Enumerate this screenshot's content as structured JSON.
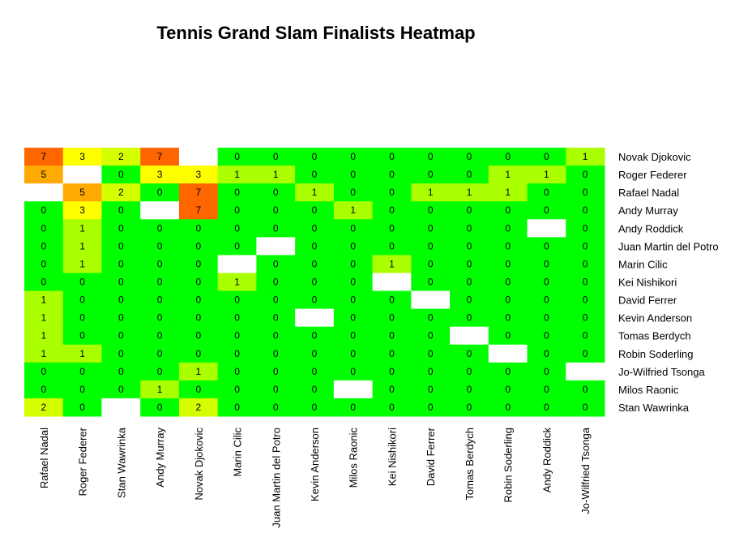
{
  "chart_data": {
    "type": "heatmap",
    "title": "Tennis Grand Slam Finalists Heatmap",
    "xlabel": "",
    "ylabel": "",
    "x_categories": [
      "Rafael Nadal",
      "Roger Federer",
      "Stan Wawrinka",
      "Andy Murray",
      "Novak Djokovic",
      "Marin Cilic",
      "Juan Martin del Potro",
      "Kevin Anderson",
      "Milos Raonic",
      "Kei Nishikori",
      "David Ferrer",
      "Tomas Berdych",
      "Robin Soderling",
      "Andy Roddick",
      "Jo-Wilfried Tsonga"
    ],
    "y_categories": [
      "Novak Djokovic",
      "Roger Federer",
      "Rafael Nadal",
      "Andy Murray",
      "Andy Roddick",
      "Juan Martin del Potro",
      "Marin Cilic",
      "Kei Nishikori",
      "David Ferrer",
      "Kevin Anderson",
      "Tomas Berdych",
      "Robin Soderling",
      "Jo-Wilfried Tsonga",
      "Milos Raonic",
      "Stan Wawrinka"
    ],
    "values": [
      [
        7,
        3,
        2,
        7,
        null,
        0,
        0,
        0,
        0,
        0,
        0,
        0,
        0,
        0,
        1
      ],
      [
        5,
        null,
        0,
        3,
        3,
        1,
        1,
        0,
        0,
        0,
        0,
        0,
        1,
        1,
        0
      ],
      [
        null,
        5,
        2,
        0,
        7,
        0,
        0,
        1,
        0,
        0,
        1,
        1,
        1,
        0,
        0
      ],
      [
        0,
        3,
        0,
        null,
        7,
        0,
        0,
        0,
        1,
        0,
        0,
        0,
        0,
        0,
        0
      ],
      [
        0,
        1,
        0,
        0,
        0,
        0,
        0,
        0,
        0,
        0,
        0,
        0,
        0,
        null,
        0
      ],
      [
        0,
        1,
        0,
        0,
        0,
        0,
        null,
        0,
        0,
        0,
        0,
        0,
        0,
        0,
        0
      ],
      [
        0,
        1,
        0,
        0,
        0,
        null,
        0,
        0,
        0,
        1,
        0,
        0,
        0,
        0,
        0
      ],
      [
        0,
        0,
        0,
        0,
        0,
        1,
        0,
        0,
        0,
        null,
        0,
        0,
        0,
        0,
        0
      ],
      [
        1,
        0,
        0,
        0,
        0,
        0,
        0,
        0,
        0,
        0,
        null,
        0,
        0,
        0,
        0
      ],
      [
        1,
        0,
        0,
        0,
        0,
        0,
        0,
        null,
        0,
        0,
        0,
        0,
        0,
        0,
        0
      ],
      [
        1,
        0,
        0,
        0,
        0,
        0,
        0,
        0,
        0,
        0,
        0,
        null,
        0,
        0,
        0
      ],
      [
        1,
        1,
        0,
        0,
        0,
        0,
        0,
        0,
        0,
        0,
        0,
        0,
        null,
        0,
        0
      ],
      [
        0,
        0,
        0,
        0,
        1,
        0,
        0,
        0,
        0,
        0,
        0,
        0,
        0,
        0,
        null
      ],
      [
        0,
        0,
        0,
        1,
        0,
        0,
        0,
        0,
        null,
        0,
        0,
        0,
        0,
        0,
        0
      ],
      [
        2,
        0,
        null,
        0,
        2,
        0,
        0,
        0,
        0,
        0,
        0,
        0,
        0,
        0,
        0
      ]
    ],
    "color_scale": {
      "0": "#00ff00",
      "1": "#aaff00",
      "2": "#d4ff00",
      "3": "#ffff00",
      "5": "#ffaa00",
      "7": "#ff6600",
      "missing": "#ffffff"
    },
    "legend": "none"
  }
}
